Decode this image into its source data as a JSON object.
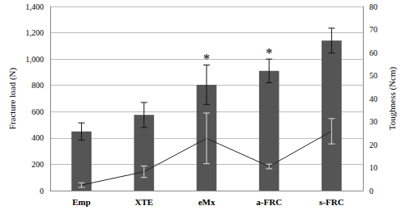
{
  "chart_data": {
    "type": "bar",
    "categories": [
      "Emp",
      "XTE",
      "eMx",
      "a-FRC",
      "s-FRC"
    ],
    "ylabel": "Fracture load (N)",
    "y2label": "Toughness (Ncm)",
    "ylim": [
      0,
      1400
    ],
    "yticks": [
      0,
      200,
      400,
      600,
      800,
      1000,
      1200,
      1400
    ],
    "y2lim": [
      0,
      80
    ],
    "y2ticks": [
      0,
      10,
      20,
      30,
      40,
      50,
      60,
      70,
      80
    ],
    "grid": true,
    "series": [
      {
        "type": "bar",
        "color": "#555555",
        "values": [
          450,
          575,
          805,
          910,
          1140
        ],
        "errors": [
          65,
          95,
          150,
          90,
          95
        ]
      },
      {
        "type": "line",
        "axis": "y2",
        "color": "#222222",
        "values": [
          2.4,
          8.2,
          22.7,
          10.5,
          25.8
        ],
        "errors": [
          1,
          2.5,
          11,
          1,
          5.5
        ]
      }
    ],
    "annotations": [
      {
        "category": "eMx",
        "text": "*"
      },
      {
        "category": "a-FRC",
        "text": "*"
      }
    ]
  }
}
